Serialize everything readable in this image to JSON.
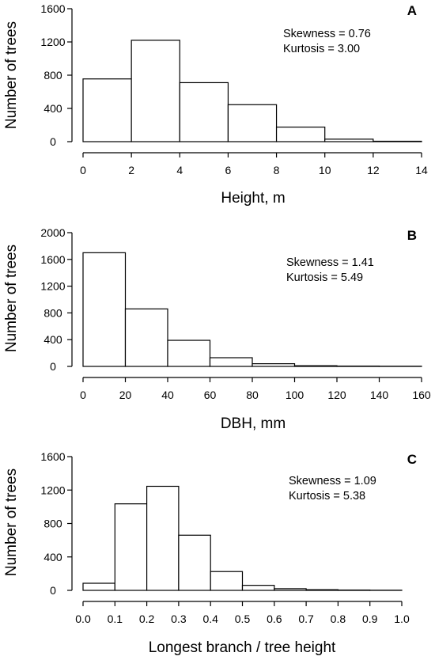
{
  "chart_data": [
    {
      "type": "bar",
      "panel": "A",
      "xlabel": "Height, m",
      "ylabel": "Number of trees",
      "bin_edges": [
        0,
        2,
        4,
        6,
        8,
        10,
        12,
        14
      ],
      "values": [
        755,
        1220,
        710,
        445,
        175,
        30,
        5
      ],
      "xlim": [
        0,
        14
      ],
      "ylim": [
        0,
        1600
      ],
      "xticks": [
        "0",
        "2",
        "4",
        "6",
        "8",
        "10",
        "12",
        "14"
      ],
      "yticks": [
        "0",
        "400",
        "800",
        "1200",
        "1600"
      ],
      "stats": [
        "Skewness = 0.76",
        "Kurtosis = 3.00"
      ]
    },
    {
      "type": "bar",
      "panel": "B",
      "xlabel": "DBH, mm",
      "ylabel": "Number of trees",
      "bin_edges": [
        0,
        20,
        40,
        60,
        80,
        100,
        120,
        140,
        160
      ],
      "values": [
        1700,
        860,
        390,
        130,
        40,
        10,
        5,
        3
      ],
      "xlim": [
        0,
        160
      ],
      "ylim": [
        0,
        2000
      ],
      "xticks": [
        "0",
        "20",
        "40",
        "60",
        "80",
        "100",
        "120",
        "140",
        "160"
      ],
      "yticks": [
        "0",
        "400",
        "800",
        "1200",
        "1600",
        "2000"
      ],
      "stats": [
        "Skewness = 1.41",
        "Kurtosis = 5.49"
      ]
    },
    {
      "type": "bar",
      "panel": "C",
      "xlabel": "Longest branch / tree height",
      "ylabel": "Number of trees",
      "bin_edges": [
        0.0,
        0.1,
        0.2,
        0.3,
        0.4,
        0.5,
        0.6,
        0.7,
        0.8,
        0.9,
        1.0
      ],
      "values": [
        85,
        1035,
        1245,
        660,
        225,
        60,
        20,
        8,
        4,
        2
      ],
      "xlim": [
        0,
        1
      ],
      "ylim": [
        0,
        1600
      ],
      "xticks": [
        "0.0",
        "0.1",
        "0.2",
        "0.3",
        "0.4",
        "0.5",
        "0.6",
        "0.7",
        "0.8",
        "0.9",
        "1.0"
      ],
      "yticks": [
        "0",
        "400",
        "800",
        "1200",
        "1600"
      ],
      "stats": [
        "Skewness = 1.09",
        "Kurtosis = 5.38"
      ]
    }
  ]
}
